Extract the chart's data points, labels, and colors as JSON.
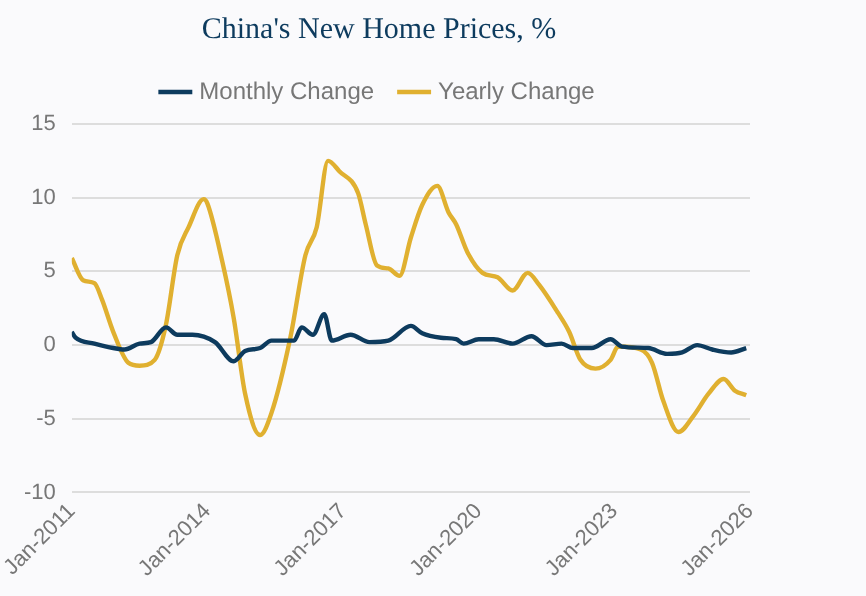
{
  "chart_data": {
    "type": "line",
    "title": "China's New Home Prices, %",
    "xlim": [
      "2011-01",
      "2026-01"
    ],
    "xticks": [
      {
        "value": "2011-01",
        "label": "Jan-2011"
      },
      {
        "value": "2014-01",
        "label": "Jan-2014"
      },
      {
        "value": "2017-01",
        "label": "Jan-2017"
      },
      {
        "value": "2020-01",
        "label": "Jan-2020"
      },
      {
        "value": "2023-01",
        "label": "Jan-2023"
      },
      {
        "value": "2026-01",
        "label": "Jan-2026"
      }
    ],
    "ylim": [
      -10,
      15
    ],
    "yticks": [
      -10,
      -5,
      0,
      5,
      10,
      15
    ],
    "grid": "y",
    "legend": "top",
    "marker": "none",
    "line_style": "solid",
    "series": [
      {
        "name": "Monthly Change",
        "color": "#0d3b5e",
        "x": [
          "2011-01",
          "2011-02",
          "2011-07",
          "2011-12",
          "2012-03",
          "2012-07",
          "2012-10",
          "2013-02",
          "2013-05",
          "2013-09",
          "2014-03",
          "2014-08",
          "2014-11",
          "2015-03",
          "2015-06",
          "2015-12",
          "2016-02",
          "2016-05",
          "2016-08",
          "2016-10",
          "2017-03",
          "2017-08",
          "2018-01",
          "2018-07",
          "2018-10",
          "2019-03",
          "2019-07",
          "2019-09",
          "2020-01",
          "2020-05",
          "2020-10",
          "2021-03",
          "2021-07",
          "2021-11",
          "2022-02",
          "2022-07",
          "2022-12",
          "2023-03",
          "2023-10",
          "2024-03",
          "2024-07",
          "2024-11",
          "2025-03",
          "2025-08",
          "2025-12"
        ],
        "values": [
          0.9,
          0.5,
          0.1,
          -0.2,
          -0.3,
          0.1,
          0.2,
          1.2,
          0.7,
          0.7,
          0.2,
          -1.1,
          -0.4,
          -0.2,
          0.3,
          0.3,
          1.2,
          0.7,
          2.1,
          0.3,
          0.7,
          0.2,
          0.3,
          1.3,
          0.8,
          0.5,
          0.4,
          0.1,
          0.4,
          0.4,
          0.1,
          0.6,
          0.0,
          0.1,
          -0.2,
          -0.2,
          0.4,
          -0.1,
          -0.2,
          -0.6,
          -0.5,
          0.0,
          -0.3,
          -0.5,
          -0.2
        ]
      },
      {
        "name": "Yearly Change",
        "color": "#e0b030",
        "x": [
          "2011-01",
          "2011-04",
          "2011-07",
          "2011-09",
          "2011-12",
          "2012-04",
          "2012-07",
          "2012-11",
          "2013-02",
          "2013-05",
          "2013-08",
          "2013-12",
          "2014-01",
          "2014-05",
          "2014-08",
          "2014-11",
          "2015-03",
          "2015-06",
          "2015-11",
          "2016-03",
          "2016-06",
          "2016-09",
          "2016-12",
          "2017-05",
          "2017-07",
          "2017-10",
          "2018-01",
          "2018-04",
          "2018-07",
          "2018-10",
          "2019-02",
          "2019-05",
          "2019-07",
          "2019-10",
          "2020-02",
          "2020-06",
          "2020-10",
          "2021-02",
          "2021-05",
          "2021-10",
          "2022-01",
          "2022-04",
          "2022-08",
          "2022-12",
          "2023-02",
          "2023-08",
          "2023-11",
          "2024-02",
          "2024-06",
          "2024-10",
          "2025-02",
          "2025-06",
          "2025-09",
          "2025-12"
        ],
        "values": [
          5.9,
          4.4,
          4.2,
          3.1,
          0.9,
          -1.2,
          -1.4,
          -1.0,
          1.4,
          6.1,
          8.0,
          9.9,
          9.6,
          5.6,
          1.8,
          -3.3,
          -6.1,
          -4.6,
          0.5,
          6.1,
          8.0,
          12.5,
          11.8,
          10.3,
          8.2,
          5.4,
          5.2,
          4.7,
          7.3,
          9.5,
          10.8,
          9.0,
          8.2,
          6.3,
          4.9,
          4.6,
          3.7,
          4.9,
          4.1,
          2.2,
          0.9,
          -1.0,
          -1.6,
          -1.0,
          -0.1,
          -0.3,
          -1.2,
          -3.8,
          -5.9,
          -4.8,
          -3.3,
          -2.3,
          -3.1,
          -3.4
        ]
      }
    ]
  }
}
